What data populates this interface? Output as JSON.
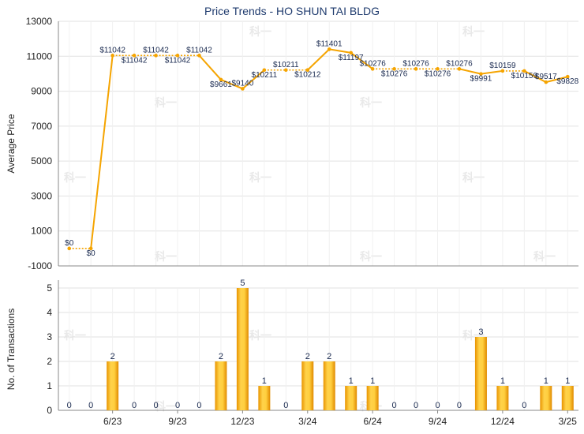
{
  "title": "Price Trends - HO SHUN TAI BLDG",
  "watermark": "科一",
  "colors": {
    "line": "#f5a400",
    "bar_light": "#ffd24a",
    "bar_dark": "#e89400",
    "label": "#1a2a50"
  },
  "chart_data": [
    {
      "type": "line",
      "title": "Price Trends - HO SHUN TAI BLDG",
      "ylabel": "Average Price",
      "ylim": [
        -1000,
        13000
      ],
      "yticks": [
        -1000,
        1000,
        3000,
        5000,
        7000,
        9000,
        11000,
        13000
      ],
      "grid": true,
      "series": [
        {
          "values": [
            0,
            0,
            11042,
            11042,
            11042,
            11042,
            11042,
            9661,
            9140,
            10211,
            10211,
            10212,
            11401,
            11197,
            10276,
            10276,
            10276,
            10276,
            10276,
            9991,
            10159,
            10159,
            9517,
            9828
          ],
          "labels": [
            "$0",
            "$0",
            "$11042",
            "$11042",
            "$11042",
            "$11042",
            "$11042",
            "$9661",
            "$9140",
            "$10211",
            "$10211",
            "$10212",
            "$11401",
            "$11197",
            "$10276",
            "$10276",
            "$10276",
            "$10276",
            "$10276",
            "$9991",
            "$10159",
            "$10159",
            "$9517",
            "$9828"
          ],
          "dotted_segments": [
            0,
            2,
            3,
            4,
            5,
            9,
            10,
            14,
            15,
            16,
            17,
            20
          ]
        }
      ]
    },
    {
      "type": "bar",
      "ylabel": "No. of Transactions",
      "ylim": [
        0,
        5
      ],
      "yticks": [
        0,
        1,
        2,
        3,
        4,
        5
      ],
      "grid": true,
      "xticks": [
        "6/23",
        "9/23",
        "12/23",
        "3/24",
        "6/24",
        "9/24",
        "12/24",
        "3/25"
      ],
      "xtick_index": [
        2,
        5,
        8,
        11,
        14,
        17,
        20,
        23
      ],
      "values": [
        0,
        0,
        2,
        0,
        0,
        0,
        0,
        2,
        5,
        1,
        0,
        2,
        2,
        1,
        1,
        0,
        0,
        0,
        0,
        3,
        1,
        0,
        1,
        1
      ]
    }
  ]
}
